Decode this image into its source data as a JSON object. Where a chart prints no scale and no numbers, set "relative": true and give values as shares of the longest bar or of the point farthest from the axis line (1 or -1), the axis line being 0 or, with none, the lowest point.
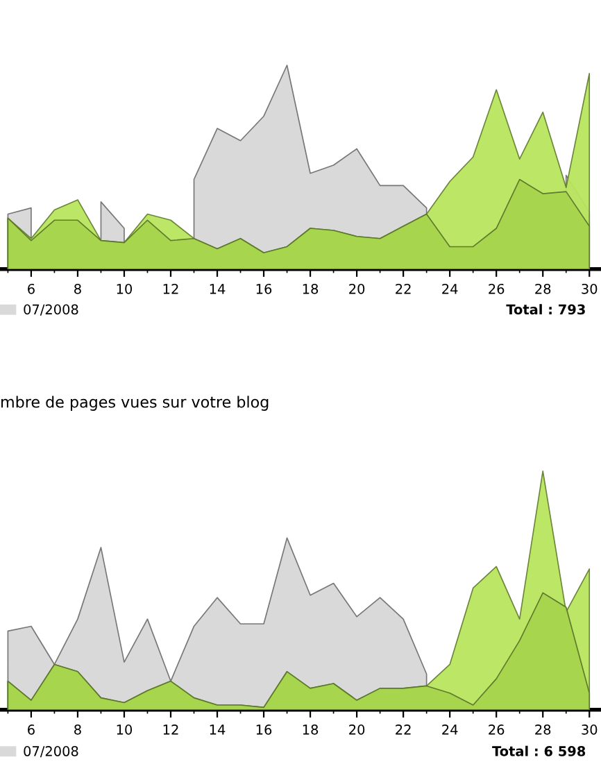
{
  "chart_data": [
    {
      "type": "area",
      "relative": true,
      "x": [
        5,
        6,
        7,
        8,
        9,
        10,
        11,
        12,
        13,
        14,
        15,
        16,
        17,
        18,
        19,
        20,
        21,
        22,
        23,
        24,
        25,
        26,
        27,
        28,
        29,
        30
      ],
      "xlim": [
        4.66,
        30.5
      ],
      "xticks": [
        6,
        8,
        10,
        12,
        14,
        16,
        18,
        20,
        22,
        24,
        26,
        28,
        30
      ],
      "legend": "bottom left",
      "annotations": [
        "Total : 793"
      ],
      "series": [
        {
          "name": "07/2008",
          "color": "#d9d9d9",
          "values": [
            0.27,
            0.3,
            null,
            null,
            0.33,
            0.2,
            null,
            null,
            0.44,
            0.69,
            0.63,
            0.75,
            1,
            0.47,
            0.51,
            0.59,
            0.41,
            0.41,
            0.3,
            null,
            null,
            null,
            null,
            null,
            0.46,
            0.28
          ]
        },
        {
          "color": "#b8e65e",
          "values": [
            0.25,
            0.15,
            0.29,
            0.34,
            0.14,
            0.13,
            0.27,
            0.24,
            0.15,
            0.1,
            0.15,
            0.08,
            0.11,
            0.2,
            0.19,
            0.16,
            0.15,
            0.21,
            0.27,
            0.43,
            0.55,
            0.88,
            0.54,
            0.77,
            0.4,
            0.96
          ]
        },
        {
          "color": "#a5d44d",
          "values": [
            0.25,
            0.14,
            0.24,
            0.24,
            0.14,
            0.13,
            0.24,
            0.14,
            0.15,
            0.1,
            0.15,
            0.08,
            0.11,
            0.2,
            0.19,
            0.16,
            0.15,
            0.21,
            0.27,
            0.11,
            0.11,
            0.2,
            0.44,
            0.37,
            0.38,
            0.21
          ]
        }
      ]
    },
    {
      "type": "area",
      "relative": true,
      "title": "mbre de pages vues sur votre blog",
      "x": [
        5,
        6,
        7,
        8,
        9,
        10,
        11,
        12,
        13,
        14,
        15,
        16,
        17,
        18,
        19,
        20,
        21,
        22,
        23,
        24,
        25,
        26,
        27,
        28,
        29,
        30
      ],
      "xlim": [
        4.66,
        30.5
      ],
      "xticks": [
        6,
        8,
        10,
        12,
        14,
        16,
        18,
        20,
        22,
        24,
        26,
        28,
        30
      ],
      "legend": "bottom left",
      "annotations": [
        "Total : 6 598"
      ],
      "series": [
        {
          "name": "07/2008",
          "color": "#d9d9d9",
          "values": [
            0.33,
            0.35,
            0.19,
            0.38,
            0.68,
            0.2,
            0.38,
            0.12,
            0.35,
            0.47,
            0.36,
            0.36,
            0.72,
            0.48,
            0.53,
            0.39,
            0.47,
            0.38,
            0.15,
            null,
            null,
            null,
            null,
            null,
            null,
            null
          ]
        },
        {
          "color": "#b8e65e",
          "values": [
            0.12,
            0.04,
            0.19,
            0.16,
            0.05,
            0.03,
            0.08,
            0.12,
            0.05,
            0.02,
            0.02,
            0.01,
            0.16,
            0.09,
            0.11,
            0.04,
            0.09,
            0.09,
            0.1,
            0.19,
            0.51,
            0.6,
            0.38,
            1,
            0.41,
            0.59
          ]
        },
        {
          "color": "#a5d44d",
          "values": [
            0.12,
            0.04,
            0.19,
            0.16,
            0.05,
            0.03,
            0.08,
            0.12,
            0.05,
            0.02,
            0.02,
            0.01,
            0.16,
            0.09,
            0.11,
            0.04,
            0.09,
            0.09,
            0.1,
            0.07,
            0.02,
            0.13,
            0.29,
            0.49,
            0.43,
            0.07
          ]
        }
      ]
    }
  ]
}
